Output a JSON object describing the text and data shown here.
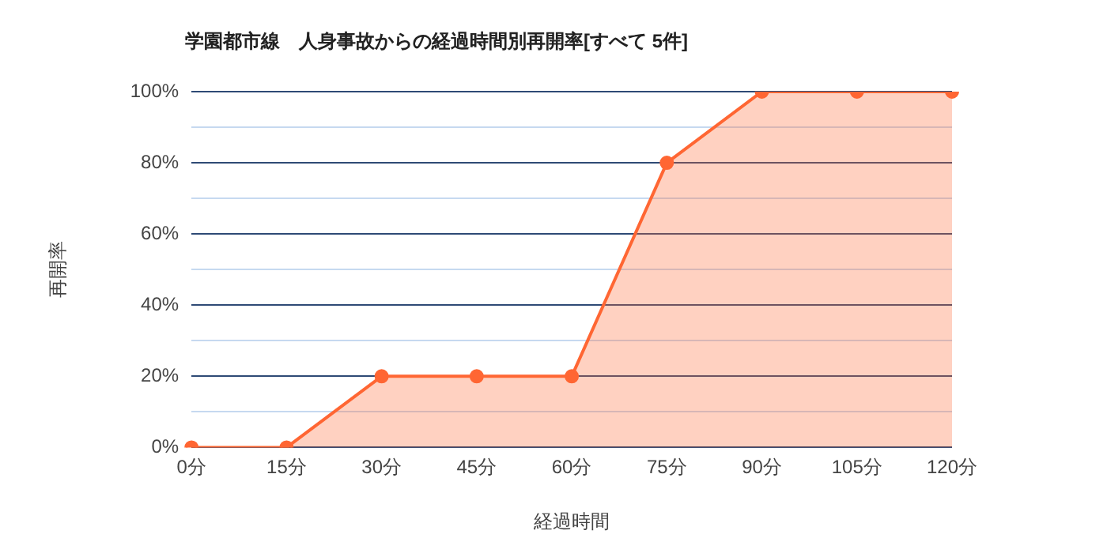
{
  "chart_data": {
    "type": "area",
    "title": "学園都市線　人身事故からの経過時間別再開率[すべて 5件]",
    "xlabel": "経過時間",
    "ylabel": "再開率",
    "categories": [
      "0分",
      "15分",
      "30分",
      "45分",
      "60分",
      "75分",
      "90分",
      "105分",
      "120分"
    ],
    "series": [
      {
        "color": "#ff6633",
        "values": [
          0,
          0,
          20,
          20,
          20,
          80,
          100,
          100,
          100
        ]
      }
    ],
    "ylim": [
      0,
      100
    ],
    "yticks": [
      {
        "value": 0,
        "label": "0%"
      },
      {
        "value": 10,
        "label": null
      },
      {
        "value": 20,
        "label": "20%"
      },
      {
        "value": 30,
        "label": null
      },
      {
        "value": 40,
        "label": "40%"
      },
      {
        "value": 50,
        "label": null
      },
      {
        "value": 60,
        "label": "60%"
      },
      {
        "value": 70,
        "label": null
      },
      {
        "value": 80,
        "label": "80%"
      },
      {
        "value": 90,
        "label": null
      },
      {
        "value": 100,
        "label": "100%"
      }
    ],
    "grid": "y",
    "legend": false,
    "marker": "circle",
    "line_style": "solid"
  }
}
